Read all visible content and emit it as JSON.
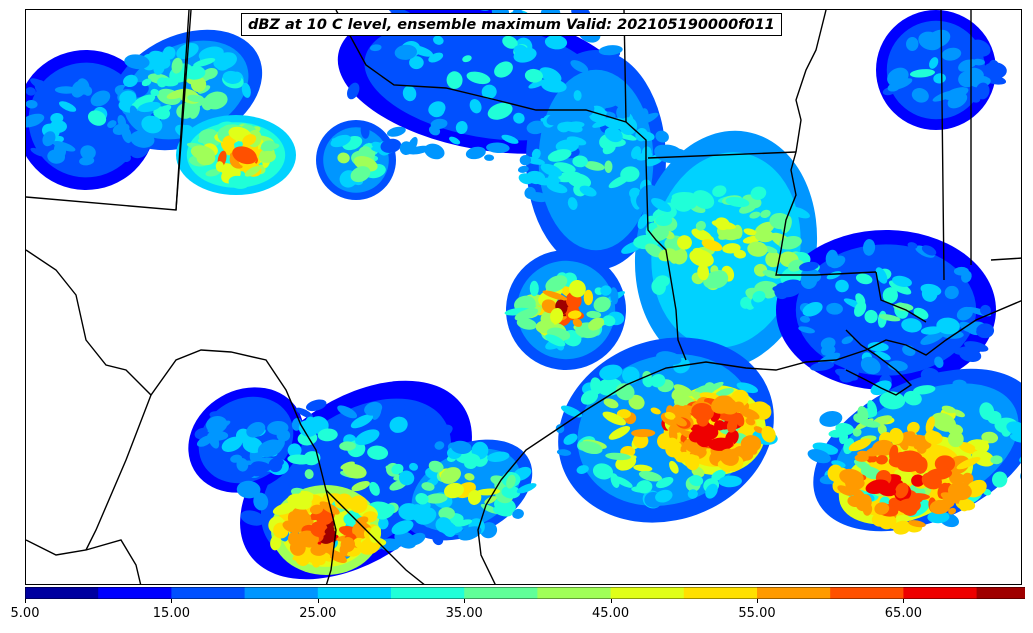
{
  "map": {
    "title": "dBZ at 10 C level, ensemble maximum Valid: 202105190000f011",
    "field": "reflectivity",
    "units": "dBZ"
  },
  "colorbar": {
    "min": 5,
    "max": 70,
    "extend": "max",
    "levels": [
      5,
      10,
      15,
      20,
      25,
      30,
      35,
      40,
      45,
      50,
      55,
      60,
      65,
      70
    ],
    "colors": [
      "#00009f",
      "#0000ff",
      "#0050ff",
      "#0096ff",
      "#00d2ff",
      "#20ffd8",
      "#60ff98",
      "#a0ff58",
      "#e0ff18",
      "#ffe000",
      "#ff9a00",
      "#ff5000",
      "#ee0000",
      "#9f0000"
    ],
    "tick_labels": [
      "5.00",
      "15.00",
      "25.00",
      "35.00",
      "45.00",
      "55.00",
      "65.00"
    ]
  }
}
